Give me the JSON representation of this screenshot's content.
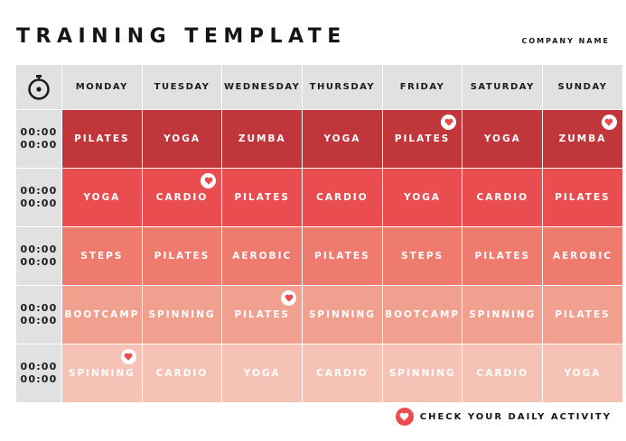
{
  "header": {
    "title": "TRAINING TEMPLATE",
    "company": "COMPANY NAME"
  },
  "schedule": {
    "clock_icon": "stopwatch-icon",
    "days": [
      "MONDAY",
      "TUESDAY",
      "WEDNESDAY",
      "THURSDAY",
      "FRIDAY",
      "SATURDAY",
      "SUNDAY"
    ],
    "rows": [
      {
        "time": [
          "00:00",
          "00:00"
        ],
        "activities": [
          "PILATES",
          "YOGA",
          "ZUMBA",
          "YOGA",
          "PILATES",
          "YOGA",
          "ZUMBA"
        ]
      },
      {
        "time": [
          "00:00",
          "00:00"
        ],
        "activities": [
          "YOGA",
          "CARDIO",
          "PILATES",
          "CARDIO",
          "YOGA",
          "CARDIO",
          "PILATES"
        ]
      },
      {
        "time": [
          "00:00",
          "00:00"
        ],
        "activities": [
          "STEPS",
          "PILATES",
          "AEROBIC",
          "PILATES",
          "STEPS",
          "PILATES",
          "AEROBIC"
        ]
      },
      {
        "time": [
          "00:00",
          "00:00"
        ],
        "activities": [
          "BOOTCAMP",
          "SPINNING",
          "PILATES",
          "SPINNING",
          "BOOTCAMP",
          "SPINNING",
          "PILATES"
        ]
      },
      {
        "time": [
          "00:00",
          "00:00"
        ],
        "activities": [
          "SPINNING",
          "CARDIO",
          "YOGA",
          "CARDIO",
          "SPINNING",
          "CARDIO",
          "YOGA"
        ]
      }
    ],
    "hearts": [
      [
        0,
        4
      ],
      [
        0,
        6
      ],
      [
        1,
        1
      ],
      [
        3,
        2
      ],
      [
        4,
        0
      ]
    ],
    "row_colors": [
      "#c1363b",
      "#ea4d50",
      "#ee7b6e",
      "#f19f8f",
      "#f6c2b5"
    ],
    "header_color": "#e1e1e1",
    "heart_icon": "heart-icon"
  },
  "legend": {
    "icon": "heart-icon",
    "text": "CHECK YOUR DAILY ACTIVITY",
    "color": "#ea4d50"
  }
}
